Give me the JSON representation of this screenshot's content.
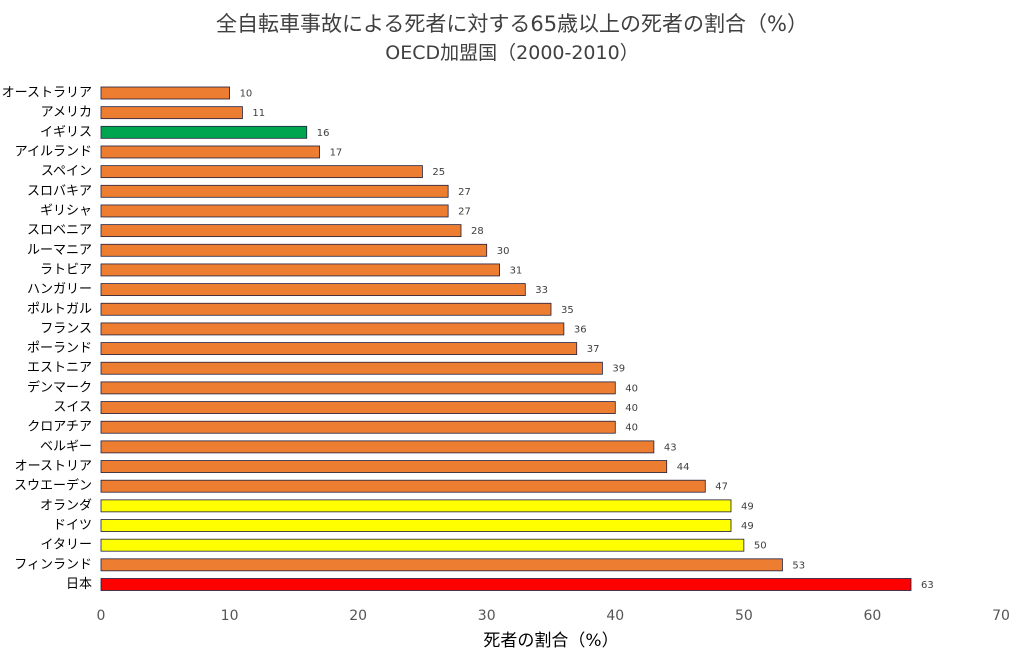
{
  "chart_data": {
    "type": "bar",
    "orientation": "horizontal",
    "title": "全自転車事故による死者に対する65歳以上の死者の割合（%）",
    "subtitle": "OECD加盟国（2000-2010）",
    "xlabel": "死者の割合（%）",
    "ylabel": "",
    "xlim": [
      0,
      70
    ],
    "xticks": [
      0,
      10,
      20,
      30,
      40,
      50,
      60,
      70
    ],
    "grid": false,
    "categories": [
      "オーストラリア",
      "アメリカ",
      "イギリス",
      "アイルランド",
      "スペイン",
      "スロバキア",
      "ギリシャ",
      "スロベニア",
      "ルーマニア",
      "ラトビア",
      "ハンガリー",
      "ポルトガル",
      "フランス",
      "ポーランド",
      "エストニア",
      "デンマーク",
      "スイス",
      "クロアチア",
      "ベルギー",
      "オーストリア",
      "スウエーデン",
      "オランダ",
      "ドイツ",
      "イタリー",
      "フィンランド",
      "日本"
    ],
    "values": [
      10,
      11,
      16,
      17,
      25,
      27,
      27,
      28,
      30,
      31,
      33,
      35,
      36,
      37,
      39,
      40,
      40,
      40,
      43,
      44,
      47,
      49,
      49,
      50,
      53,
      63
    ],
    "value_labels": [
      "10",
      "11",
      "16",
      "17",
      "25",
      "27",
      "27",
      "28",
      "30",
      "31",
      "33",
      "35",
      "36",
      "37",
      "39",
      "40",
      "40",
      "40",
      "43",
      "44",
      "47",
      "49",
      "49",
      "50",
      "53",
      "63"
    ],
    "bar_colors": [
      "#ed7d31",
      "#ed7d31",
      "#00a550",
      "#ed7d31",
      "#ed7d31",
      "#ed7d31",
      "#ed7d31",
      "#ed7d31",
      "#ed7d31",
      "#ed7d31",
      "#ed7d31",
      "#ed7d31",
      "#ed7d31",
      "#ed7d31",
      "#ed7d31",
      "#ed7d31",
      "#ed7d31",
      "#ed7d31",
      "#ed7d31",
      "#ed7d31",
      "#ed7d31",
      "#ffff00",
      "#ffff00",
      "#ffff00",
      "#ed7d31",
      "#ff0000"
    ],
    "bar_border_color": "#1f1f3f"
  }
}
